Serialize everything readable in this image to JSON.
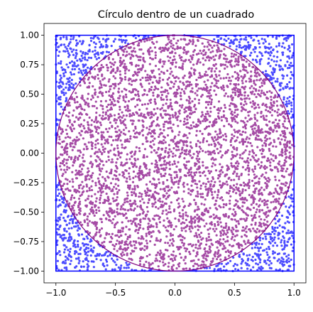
{
  "chart_data": {
    "type": "scatter",
    "title": "Círculo dentro de un cuadrado",
    "xlabel": "",
    "ylabel": "",
    "xlim": [
      -1.1,
      1.1
    ],
    "ylim": [
      -1.1,
      1.1
    ],
    "grid": false,
    "legend": "none",
    "x_ticks": [
      -1.0,
      -0.5,
      0.0,
      0.5,
      1.0
    ],
    "x_tick_labels": [
      "−1.0",
      "−0.5",
      "0.0",
      "0.5",
      "1.0"
    ],
    "y_ticks": [
      1.0,
      0.75,
      0.5,
      0.25,
      0.0,
      -0.25,
      -0.5,
      -0.75,
      -1.0
    ],
    "y_tick_labels": [
      "1.00",
      "0.75",
      "0.50",
      "0.25",
      "0.00",
      "−0.25",
      "−0.50",
      "−0.75",
      "−1.00"
    ],
    "square": {
      "x_min": -1.0,
      "x_max": 1.0,
      "y_min": -1.0,
      "y_max": 1.0,
      "color": "#0000ff"
    },
    "circle": {
      "center_x": 0.0,
      "center_y": 0.0,
      "radius": 1.0,
      "color": "#800080"
    },
    "points": {
      "sampled_region": {
        "x_min": -1.0,
        "x_max": 1.0,
        "y_min": -1.0,
        "y_max": 1.0
      },
      "approx_count": 5000,
      "inside_circle_color": "#800080",
      "outside_circle_color": "#0000ff",
      "alpha": 0.7
    },
    "series": [
      {
        "color": "#800080",
        "x": [
          -0.62,
          -0.35,
          0.12,
          0.41,
          0.68,
          -0.08,
          0.25,
          -0.51
        ],
        "y": [
          0.44,
          -0.21,
          0.57,
          -0.66,
          0.13,
          0.02,
          0.31,
          -0.49
        ]
      },
      {
        "color": "#0000ff",
        "x": [
          -0.93,
          0.95,
          -0.88,
          0.91
        ],
        "y": [
          0.92,
          0.88,
          -0.94,
          -0.9
        ]
      }
    ]
  }
}
